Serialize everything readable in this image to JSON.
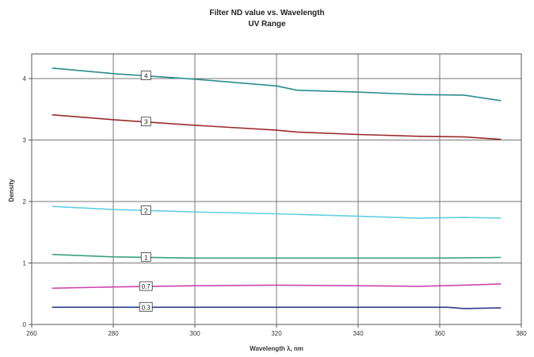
{
  "chart_data": {
    "type": "line",
    "title": "Filter ND value vs. Wavelength",
    "subtitle": "UV Range",
    "xlabel": "Wavelength λ, nm",
    "ylabel": "Density",
    "xlim": [
      260,
      380
    ],
    "ylim": [
      0,
      4.4
    ],
    "x_ticks": [
      "260",
      "280",
      "300",
      "320",
      "340",
      "360",
      "380"
    ],
    "y_ticks": [
      "0",
      "1",
      "2",
      "3",
      "4"
    ],
    "grid": true,
    "legend": "none",
    "series": [
      {
        "name": "4",
        "color": "#2a8c8c",
        "label_x": 288,
        "points": [
          [
            265,
            4.17
          ],
          [
            280,
            4.08
          ],
          [
            300,
            3.99
          ],
          [
            320,
            3.88
          ],
          [
            325,
            3.81
          ],
          [
            340,
            3.78
          ],
          [
            355,
            3.74
          ],
          [
            366,
            3.73
          ],
          [
            375,
            3.64
          ]
        ]
      },
      {
        "name": "3",
        "color": "#9a2a2a",
        "label_x": 288,
        "points": [
          [
            265,
            3.41
          ],
          [
            280,
            3.33
          ],
          [
            300,
            3.24
          ],
          [
            320,
            3.16
          ],
          [
            325,
            3.13
          ],
          [
            340,
            3.09
          ],
          [
            355,
            3.06
          ],
          [
            366,
            3.05
          ],
          [
            375,
            3.01
          ]
        ]
      },
      {
        "name": "2",
        "color": "#5fd0e0",
        "label_x": 288,
        "points": [
          [
            265,
            1.92
          ],
          [
            280,
            1.87
          ],
          [
            300,
            1.83
          ],
          [
            320,
            1.8
          ],
          [
            340,
            1.76
          ],
          [
            355,
            1.73
          ],
          [
            366,
            1.74
          ],
          [
            375,
            1.73
          ]
        ]
      },
      {
        "name": "1",
        "color": "#3aa07a",
        "label_x": 288,
        "points": [
          [
            265,
            1.14
          ],
          [
            280,
            1.1
          ],
          [
            300,
            1.08
          ],
          [
            340,
            1.08
          ],
          [
            360,
            1.08
          ],
          [
            375,
            1.09
          ]
        ]
      },
      {
        "name": "0.7",
        "color": "#cc44aa",
        "label_x": 288,
        "points": [
          [
            265,
            0.59
          ],
          [
            280,
            0.61
          ],
          [
            300,
            0.63
          ],
          [
            320,
            0.64
          ],
          [
            340,
            0.63
          ],
          [
            355,
            0.62
          ],
          [
            366,
            0.64
          ],
          [
            375,
            0.66
          ]
        ]
      },
      {
        "name": "0.3",
        "color": "#2a3a8a",
        "label_x": 288,
        "points": [
          [
            265,
            0.28
          ],
          [
            300,
            0.28
          ],
          [
            340,
            0.28
          ],
          [
            362,
            0.28
          ],
          [
            366,
            0.26
          ],
          [
            375,
            0.27
          ]
        ]
      }
    ]
  }
}
